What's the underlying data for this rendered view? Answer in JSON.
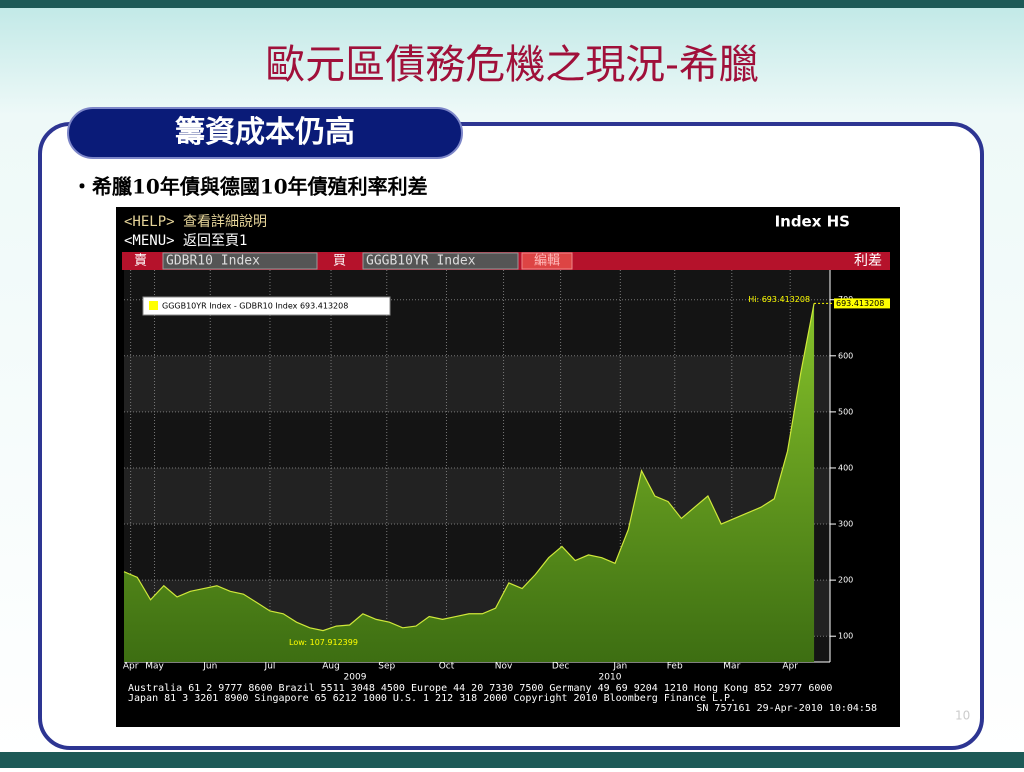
{
  "slide": {
    "title": "歐元區債務危機之現況-希臘",
    "tab": "籌資成本仍高",
    "bullet": "‧希臘10年債與德國10年債殖利率利差",
    "page": "10"
  },
  "terminal": {
    "help": "<HELP> 查看詳細說明",
    "menu": "<MENU> 返回至頁1",
    "index": "Index HS",
    "sell": "賣",
    "sell_ticker": "GDBR10 Index",
    "buy": "買",
    "buy_ticker": "GGGB10YR Index",
    "edit": "編輯",
    "spread": "利差",
    "footer": [
      "Australia 61 2 9777 8600 Brazil 5511 3048 4500 Europe 44 20 7330 7500 Germany 49 69 9204 1210 Hong Kong 852 2977 6000",
      "Japan 81 3 3201 8900      Singapore 65 6212 1000      U.S. 1 212 318 2000          Copyright 2010 Bloomberg Finance L.P.",
      "SN 757161 29-Apr-2010 10:04:58"
    ]
  },
  "chart_data": {
    "type": "area",
    "color": "#cfe83a",
    "fill": "#5f9a1c",
    "legend": "GGGB10YR Index - GDBR10 Index  693.413208",
    "high_label": "Hi: 693.413208",
    "low_label": "Low: 107.912399",
    "last_label": "693.413208",
    "years": [
      "2009",
      "2010"
    ],
    "values": [
      215,
      205,
      165,
      190,
      170,
      180,
      185,
      190,
      180,
      175,
      160,
      145,
      140,
      125,
      115,
      110,
      118,
      120,
      140,
      130,
      125,
      115,
      118,
      135,
      130,
      135,
      140,
      140,
      150,
      195,
      185,
      210,
      240,
      260,
      235,
      245,
      240,
      230,
      290,
      395,
      350,
      340,
      310,
      330,
      350,
      300,
      310,
      320,
      330,
      345,
      430,
      570,
      693.413208
    ],
    "xlim": [
      0,
      53.2
    ],
    "xticks": [
      {
        "value": 0.5,
        "label": "Apr"
      },
      {
        "value": 2.3,
        "label": "May"
      },
      {
        "value": 6.5,
        "label": "Jun"
      },
      {
        "value": 11,
        "label": "Jul"
      },
      {
        "value": 15.6,
        "label": "Aug"
      },
      {
        "value": 19.8,
        "label": "Sep"
      },
      {
        "value": 24.3,
        "label": "Oct"
      },
      {
        "value": 28.6,
        "label": "Nov"
      },
      {
        "value": 32.9,
        "label": "Dec"
      },
      {
        "value": 37.4,
        "label": "Jan"
      },
      {
        "value": 41.5,
        "label": "Feb"
      },
      {
        "value": 45.8,
        "label": "Mar"
      },
      {
        "value": 50.2,
        "label": "Apr"
      }
    ],
    "ylim": [
      54,
      753
    ],
    "yticks": [
      100,
      200,
      300,
      400,
      500,
      600,
      700
    ],
    "grid": true
  }
}
